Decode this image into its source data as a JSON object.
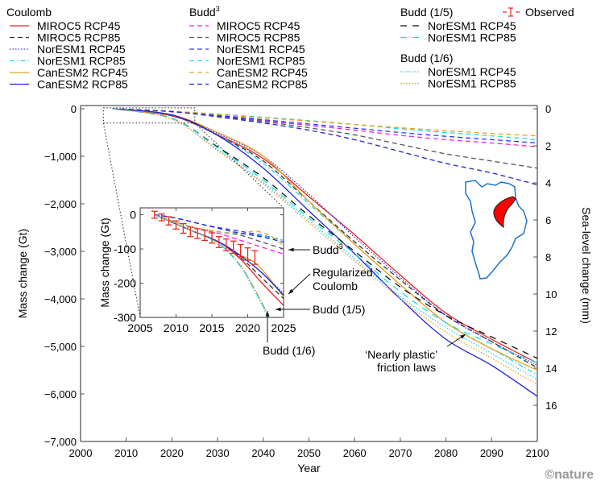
{
  "chart_data": {
    "type": "line",
    "title": "",
    "xlabel": "Year",
    "ylabel": "Mass change (Gt)",
    "y2label": "Sea-level change (mm)",
    "xlim": [
      2000,
      2100
    ],
    "ylim": [
      -7000,
      0
    ],
    "y2lim": [
      0,
      16
    ],
    "grid": false,
    "xticks": [
      "2000",
      "2010",
      "2020",
      "2030",
      "2040",
      "2050",
      "2060",
      "2070",
      "2080",
      "2090",
      "2100"
    ],
    "yticks": [
      "0",
      "−1,000",
      "−2,000",
      "−3,000",
      "−4,000",
      "−5,000",
      "−6,000",
      "−7,000"
    ],
    "y2ticks": [
      "0",
      "2",
      "4",
      "6",
      "8",
      "10",
      "12",
      "14",
      "16"
    ],
    "legend_position": "top",
    "legend": [
      {
        "group": "Coulomb",
        "entries": [
          {
            "label": "MIROC5 RCP45",
            "color": "#ee2222",
            "style": "solid"
          },
          {
            "label": "MIROC5 RCP85",
            "color": "#333333",
            "style": "dashed"
          },
          {
            "label": "NorESM1 RCP45",
            "color": "#3333ee",
            "style": "dotted"
          },
          {
            "label": "NorESM1 RCP85",
            "color": "#22dddd",
            "style": "dashdot"
          },
          {
            "label": "CanESM2 RCP45",
            "color": "#e8a020",
            "style": "solid"
          },
          {
            "label": "CanESM2 RCP85",
            "color": "#2222dd",
            "style": "solid"
          }
        ]
      },
      {
        "group": "Budd",
        "group_sup": "3",
        "entries": [
          {
            "label": "MIROC5 RCP45",
            "color": "#ee22ee",
            "style": "dashed"
          },
          {
            "label": "MIROC5 RCP85",
            "color": "#555555",
            "style": "dashed"
          },
          {
            "label": "NorESM1 RCP45",
            "color": "#3333ee",
            "style": "dashed"
          },
          {
            "label": "NorESM1 RCP85",
            "color": "#22dddd",
            "style": "dashed"
          },
          {
            "label": "CanESM2 RCP45",
            "color": "#e8a020",
            "style": "dashed"
          },
          {
            "label": "CanESM2 RCP85",
            "color": "#2222dd",
            "style": "dashed"
          }
        ]
      },
      {
        "group": "Budd (1/5)",
        "entries": [
          {
            "label": "NorESM1 RCP45",
            "color": "#111111",
            "style": "longdash"
          },
          {
            "label": "NorESM1 RCP85",
            "color": "#22dddd",
            "style": "longdash"
          }
        ]
      },
      {
        "group": "Budd (1/6)",
        "entries": [
          {
            "label": "NorESM1 RCP45",
            "color": "#22ccee",
            "style": "dotted"
          },
          {
            "label": "NorESM1 RCP85",
            "color": "#e8a020",
            "style": "dotted"
          }
        ]
      },
      {
        "group": "",
        "entries": [
          {
            "label": "Observed",
            "color": "#ee2222",
            "style": "errorbar"
          }
        ]
      }
    ],
    "series": [
      {
        "name": "Coulomb MIROC5 RCP45",
        "color": "#ee2222",
        "style": "solid",
        "x": [
          2007,
          2020,
          2030,
          2040,
          2050,
          2060,
          2070,
          2080,
          2090,
          2100
        ],
        "y": [
          0,
          -150,
          -550,
          -1050,
          -1850,
          -2650,
          -3500,
          -4300,
          -4850,
          -5350
        ]
      },
      {
        "name": "Coulomb MIROC5 RCP85",
        "color": "#333333",
        "style": "dashed",
        "x": [
          2007,
          2020,
          2030,
          2040,
          2050,
          2060,
          2070,
          2080,
          2090,
          2100
        ],
        "y": [
          0,
          -140,
          -560,
          -1100,
          -1950,
          -2800,
          -3600,
          -4350,
          -4900,
          -5450
        ]
      },
      {
        "name": "Coulomb NorESM1 RCP45",
        "color": "#3333ee",
        "style": "dotted",
        "x": [
          2007,
          2020,
          2030,
          2040,
          2050,
          2060,
          2070,
          2080,
          2090,
          2100
        ],
        "y": [
          0,
          -130,
          -520,
          -1000,
          -1800,
          -2700,
          -3550,
          -4350,
          -4900,
          -5400
        ]
      },
      {
        "name": "Coulomb NorESM1 RCP85",
        "color": "#22dddd",
        "style": "dashdot",
        "x": [
          2007,
          2020,
          2030,
          2040,
          2050,
          2060,
          2070,
          2080,
          2090,
          2100
        ],
        "y": [
          0,
          -130,
          -560,
          -1150,
          -2000,
          -2850,
          -3700,
          -4500,
          -5050,
          -5600
        ]
      },
      {
        "name": "Coulomb CanESM2 RCP45",
        "color": "#e8a020",
        "style": "solid",
        "x": [
          2007,
          2020,
          2030,
          2040,
          2050,
          2060,
          2070,
          2080,
          2090,
          2100
        ],
        "y": [
          0,
          -130,
          -500,
          -1000,
          -1950,
          -2850,
          -3700,
          -4500,
          -5050,
          -5500
        ]
      },
      {
        "name": "Coulomb CanESM2 RCP85",
        "color": "#2222dd",
        "style": "solid",
        "x": [
          2007,
          2020,
          2030,
          2040,
          2050,
          2060,
          2070,
          2080,
          2090,
          2100
        ],
        "y": [
          0,
          -130,
          -560,
          -1250,
          -2150,
          -3050,
          -4000,
          -4850,
          -5400,
          -6050
        ]
      },
      {
        "name": "Budd3 MIROC5 RCP45",
        "color": "#ee22ee",
        "style": "dashed",
        "x": [
          2007,
          2020,
          2030,
          2040,
          2050,
          2060,
          2070,
          2080,
          2090,
          2100
        ],
        "y": [
          0,
          -60,
          -150,
          -250,
          -350,
          -450,
          -560,
          -650,
          -720,
          -800
        ]
      },
      {
        "name": "Budd3 MIROC5 RCP85",
        "color": "#555555",
        "style": "dashed",
        "x": [
          2007,
          2020,
          2030,
          2040,
          2050,
          2060,
          2070,
          2080,
          2090,
          2100
        ],
        "y": [
          0,
          -60,
          -160,
          -270,
          -400,
          -550,
          -750,
          -950,
          -1100,
          -1250
        ]
      },
      {
        "name": "Budd3 NorESM1 RCP45",
        "color": "#3333ee",
        "style": "dashed",
        "x": [
          2007,
          2020,
          2030,
          2040,
          2050,
          2060,
          2070,
          2080,
          2090,
          2100
        ],
        "y": [
          0,
          -60,
          -140,
          -230,
          -320,
          -410,
          -500,
          -580,
          -650,
          -720
        ]
      },
      {
        "name": "Budd3 NorESM1 RCP85",
        "color": "#22dddd",
        "style": "dashed",
        "x": [
          2007,
          2020,
          2030,
          2040,
          2050,
          2060,
          2070,
          2080,
          2090,
          2100
        ],
        "y": [
          0,
          -55,
          -110,
          -180,
          -250,
          -330,
          -420,
          -500,
          -570,
          -650
        ]
      },
      {
        "name": "Budd3 CanESM2 RCP45",
        "color": "#e8a020",
        "style": "dashed",
        "x": [
          2007,
          2020,
          2030,
          2040,
          2050,
          2060,
          2070,
          2080,
          2090,
          2100
        ],
        "y": [
          0,
          -50,
          -120,
          -190,
          -260,
          -330,
          -400,
          -460,
          -520,
          -570
        ]
      },
      {
        "name": "Budd3 CanESM2 RCP85",
        "color": "#2222dd",
        "style": "dashed",
        "x": [
          2007,
          2020,
          2030,
          2040,
          2050,
          2060,
          2070,
          2080,
          2090,
          2100
        ],
        "y": [
          0,
          -60,
          -170,
          -300,
          -450,
          -650,
          -900,
          -1150,
          -1350,
          -1600
        ]
      },
      {
        "name": "Budd (1/5) NorESM1 RCP45",
        "color": "#111111",
        "style": "longdash",
        "x": [
          2007,
          2020,
          2030,
          2040,
          2050,
          2060,
          2070,
          2080,
          2090,
          2100
        ],
        "y": [
          0,
          -200,
          -800,
          -1450,
          -2250,
          -3000,
          -3750,
          -4350,
          -4800,
          -5250
        ]
      },
      {
        "name": "Budd (1/5) NorESM1 RCP85",
        "color": "#22dddd",
        "style": "longdash",
        "x": [
          2007,
          2020,
          2030,
          2040,
          2050,
          2060,
          2070,
          2080,
          2090,
          2100
        ],
        "y": [
          0,
          -200,
          -820,
          -1500,
          -2300,
          -3050,
          -3850,
          -4500,
          -4950,
          -5350
        ]
      },
      {
        "name": "Budd (1/6) NorESM1 RCP45",
        "color": "#22ccee",
        "style": "dotted",
        "x": [
          2007,
          2020,
          2030,
          2040,
          2050,
          2060,
          2070,
          2080,
          2090,
          2100
        ],
        "y": [
          0,
          -220,
          -860,
          -1550,
          -2350,
          -3150,
          -3950,
          -4600,
          -5150,
          -5700
        ]
      },
      {
        "name": "Budd (1/6) NorESM1 RCP85",
        "color": "#e8a020",
        "style": "dotted",
        "x": [
          2007,
          2020,
          2030,
          2040,
          2050,
          2060,
          2070,
          2080,
          2090,
          2100
        ],
        "y": [
          0,
          -220,
          -880,
          -1580,
          -2400,
          -3200,
          -4000,
          -4700,
          -5250,
          -5800
        ]
      }
    ],
    "inset": {
      "xlim": [
        2005,
        2025
      ],
      "ylim": [
        -300,
        20
      ],
      "xticks": [
        "2005",
        "2010",
        "2015",
        "2020",
        "2025"
      ],
      "yticks": [
        "0",
        "-100",
        "-200",
        "-300"
      ],
      "ylabel": "Mass change (Gt)",
      "observed": {
        "x": [
          2007,
          2008,
          2009,
          2010,
          2011,
          2012,
          2013,
          2014,
          2015,
          2016,
          2017,
          2018,
          2019,
          2020,
          2021
        ],
        "y": [
          0,
          -8,
          -18,
          -30,
          -40,
          -50,
          -55,
          -60,
          -68,
          -80,
          -88,
          -95,
          -105,
          -115,
          -125
        ],
        "err": [
          10,
          10,
          12,
          12,
          14,
          14,
          14,
          15,
          15,
          16,
          17,
          18,
          18,
          18,
          20
        ]
      },
      "annotations": [
        "Budd³",
        "Regularized Coulomb",
        "Budd (1/5)",
        "Budd (1/6)"
      ]
    },
    "annotations": [
      "‘Nearly plastic’ friction laws"
    ],
    "credit": "©nature"
  }
}
